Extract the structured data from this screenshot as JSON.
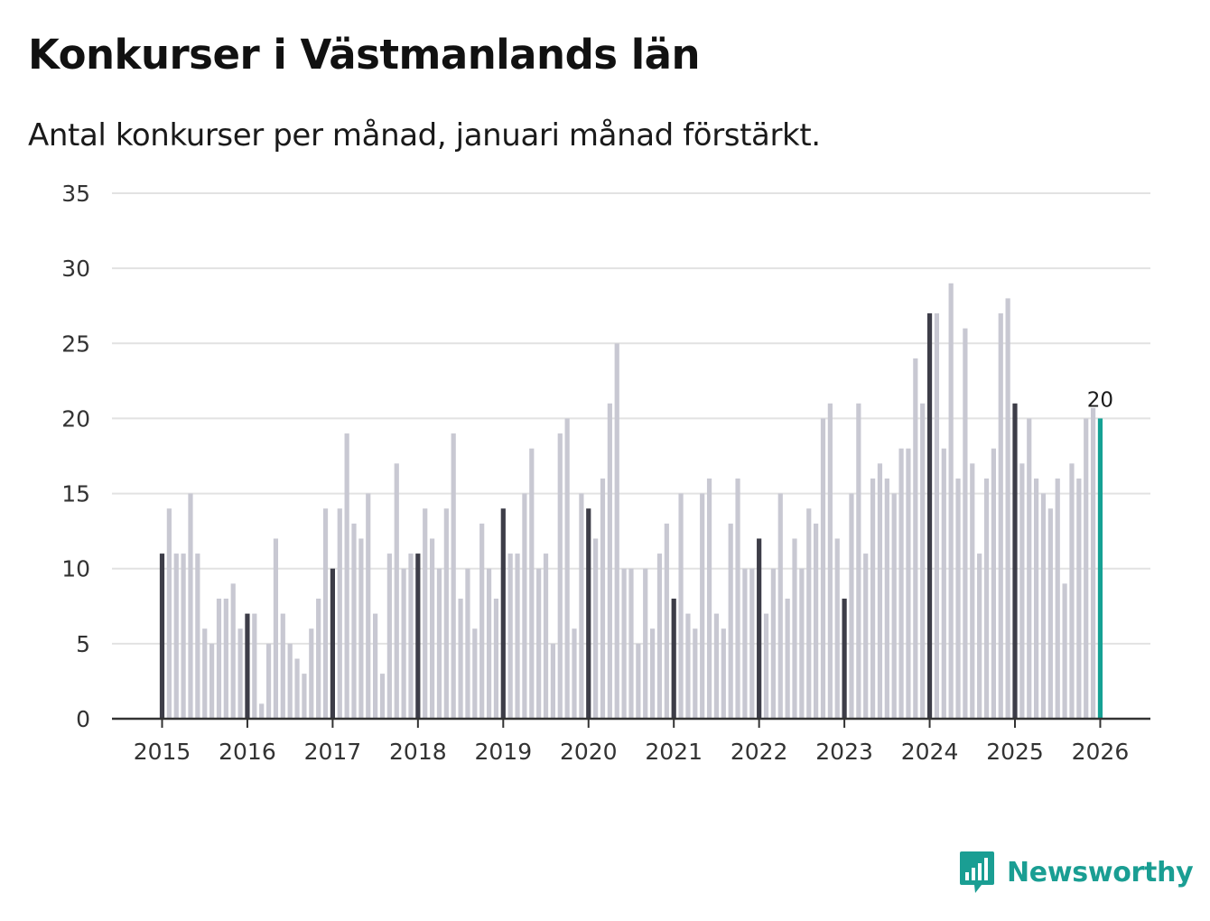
{
  "title": "Konkurser i Västmanlands län",
  "subtitle": "Antal konkurser per månad, januari månad förstärkt.",
  "brand": {
    "name": "Newsworthy",
    "icon": "newsworthy-logo-icon",
    "color": "#1a9e93"
  },
  "chart_data": {
    "type": "bar",
    "title": "Konkurser i Västmanlands län",
    "subtitle": "Antal konkurser per månad, januari månad förstärkt.",
    "xlabel": "",
    "ylabel": "",
    "ylim": [
      0,
      35
    ],
    "yticks": [
      0,
      5,
      10,
      15,
      20,
      25,
      30,
      35
    ],
    "grid": true,
    "year_labels": [
      "2015",
      "2016",
      "2017",
      "2018",
      "2019",
      "2020",
      "2021",
      "2022",
      "2023",
      "2024",
      "2025",
      "2026"
    ],
    "colors": {
      "january": "#3d3d48",
      "other": "#c8c8d2",
      "latest": "#16a194",
      "grid": "#e2e2e2",
      "axis": "#333333"
    },
    "series": [
      {
        "name": "2015",
        "values": [
          11,
          14,
          11,
          11,
          15,
          11,
          6,
          5,
          8,
          8,
          9,
          6
        ]
      },
      {
        "name": "2016",
        "values": [
          7,
          7,
          1,
          5,
          12,
          7,
          5,
          4,
          3,
          6,
          8,
          14
        ]
      },
      {
        "name": "2017",
        "values": [
          10,
          14,
          19,
          13,
          12,
          15,
          7,
          3,
          11,
          17,
          10,
          11
        ]
      },
      {
        "name": "2018",
        "values": [
          11,
          14,
          12,
          10,
          14,
          19,
          8,
          10,
          6,
          13,
          10,
          8
        ]
      },
      {
        "name": "2019",
        "values": [
          14,
          11,
          11,
          15,
          18,
          10,
          11,
          5,
          19,
          20,
          6,
          15
        ]
      },
      {
        "name": "2020",
        "values": [
          14,
          12,
          16,
          21,
          25,
          10,
          10,
          5,
          10,
          6,
          11,
          13
        ]
      },
      {
        "name": "2021",
        "values": [
          8,
          15,
          7,
          6,
          15,
          16,
          7,
          6,
          13,
          16,
          10,
          10
        ]
      },
      {
        "name": "2022",
        "values": [
          12,
          7,
          10,
          15,
          8,
          12,
          10,
          14,
          13,
          20,
          21,
          12
        ]
      },
      {
        "name": "2023",
        "values": [
          8,
          15,
          21,
          11,
          16,
          17,
          16,
          15,
          18,
          18,
          24,
          21
        ]
      },
      {
        "name": "2024",
        "values": [
          27,
          27,
          18,
          29,
          16,
          26,
          17,
          11,
          16,
          18,
          27,
          28
        ]
      },
      {
        "name": "2025",
        "values": [
          21,
          17,
          20,
          16,
          15,
          14,
          16,
          9,
          17,
          16,
          20,
          20.7
        ]
      },
      {
        "name": "2026",
        "values": [
          20
        ]
      }
    ],
    "annotations": [
      {
        "series": "2026",
        "month_index": 0,
        "label": "20"
      }
    ]
  }
}
